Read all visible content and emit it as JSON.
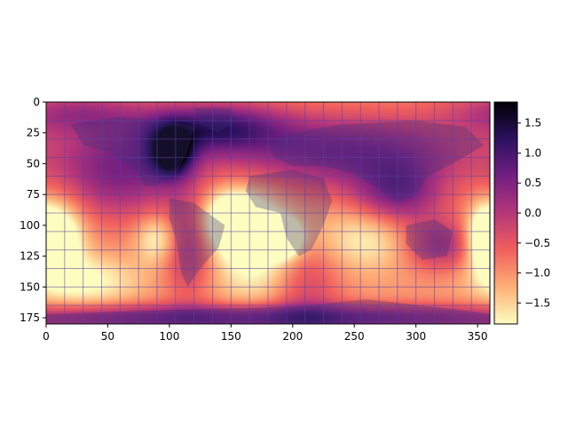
{
  "chart_data": {
    "type": "heatmap",
    "title": "",
    "xlabel": "",
    "ylabel": "",
    "x_range": [
      0,
      360
    ],
    "y_range": [
      0,
      180
    ],
    "y_inverted": true,
    "x_ticks": [
      "0",
      "50",
      "100",
      "150",
      "200",
      "250",
      "300",
      "350"
    ],
    "y_ticks": [
      "0",
      "25",
      "50",
      "75",
      "100",
      "125",
      "150",
      "175"
    ],
    "grid": true,
    "grid_spacing_x": 15,
    "grid_spacing_y": 15,
    "grid_color": "#5b3fa8",
    "colormap": "magma_r",
    "colorbar": {
      "vmin": -1.85,
      "vmax": 1.85,
      "ticks": [
        "1.5",
        "1.0",
        "0.5",
        "0.0",
        "−0.5",
        "−1.0",
        "−1.5"
      ],
      "tick_values": [
        1.5,
        1.0,
        0.5,
        0.0,
        -0.5,
        -1.0,
        -1.5
      ],
      "colors": [
        "#fcfdbf",
        "#feb078",
        "#f1605d",
        "#b5367a",
        "#721f81",
        "#2c115f",
        "#000004"
      ]
    },
    "blobs": [
      {
        "x": 101,
        "y": 40,
        "sx": 12,
        "sy": 14,
        "v": 2.6
      },
      {
        "x": 60,
        "y": 55,
        "sx": 35,
        "sy": 28,
        "v": 1.5
      },
      {
        "x": 135,
        "y": 20,
        "sx": 40,
        "sy": 14,
        "v": 1.8
      },
      {
        "x": 240,
        "y": 40,
        "sx": 80,
        "sy": 22,
        "v": 1.6
      },
      {
        "x": 285,
        "y": 75,
        "sx": 25,
        "sy": 18,
        "v": 1.4
      },
      {
        "x": 115,
        "y": 115,
        "sx": 15,
        "sy": 30,
        "v": 1.1
      },
      {
        "x": 318,
        "y": 115,
        "sx": 22,
        "sy": 15,
        "v": 1.2
      },
      {
        "x": 180,
        "y": 175,
        "sx": 200,
        "sy": 8,
        "v": 1.8
      },
      {
        "x": 20,
        "y": 8,
        "sx": 40,
        "sy": 12,
        "v": 1.0
      },
      {
        "x": 210,
        "y": 145,
        "sx": 20,
        "sy": 30,
        "v": 0.8
      },
      {
        "x": 10,
        "y": 110,
        "sx": 14,
        "sy": 20,
        "v": -1.6
      },
      {
        "x": 150,
        "y": 95,
        "sx": 18,
        "sy": 16,
        "v": -1.7
      },
      {
        "x": 192,
        "y": 110,
        "sx": 10,
        "sy": 10,
        "v": -2.0
      },
      {
        "x": 355,
        "y": 110,
        "sx": 10,
        "sy": 18,
        "v": -1.6
      },
      {
        "x": 90,
        "y": 110,
        "sx": 12,
        "sy": 14,
        "v": -1.0
      },
      {
        "x": 30,
        "y": 145,
        "sx": 30,
        "sy": 14,
        "v": -0.9
      },
      {
        "x": 260,
        "y": 110,
        "sx": 30,
        "sy": 18,
        "v": -0.8
      },
      {
        "x": 170,
        "y": 115,
        "sx": 25,
        "sy": 30,
        "v": -1.2
      }
    ],
    "continents": [
      {
        "name": "North America",
        "points": [
          [
            20,
            18
          ],
          [
            60,
            12
          ],
          [
            95,
            15
          ],
          [
            120,
            20
          ],
          [
            115,
            40
          ],
          [
            107,
            55
          ],
          [
            100,
            62
          ],
          [
            90,
            68
          ],
          [
            80,
            68
          ],
          [
            72,
            55
          ],
          [
            50,
            40
          ],
          [
            30,
            35
          ]
        ]
      },
      {
        "name": "Greenland",
        "points": [
          [
            120,
            5
          ],
          [
            150,
            5
          ],
          [
            155,
            15
          ],
          [
            140,
            25
          ],
          [
            125,
            18
          ]
        ]
      },
      {
        "name": "South America",
        "points": [
          [
            100,
            78
          ],
          [
            120,
            82
          ],
          [
            145,
            100
          ],
          [
            140,
            118
          ],
          [
            125,
            135
          ],
          [
            115,
            150
          ],
          [
            110,
            140
          ],
          [
            105,
            110
          ],
          [
            100,
            95
          ]
        ]
      },
      {
        "name": "Eurasia",
        "points": [
          [
            180,
            32
          ],
          [
            200,
            25
          ],
          [
            240,
            18
          ],
          [
            300,
            15
          ],
          [
            340,
            20
          ],
          [
            355,
            35
          ],
          [
            330,
            50
          ],
          [
            310,
            60
          ],
          [
            300,
            75
          ],
          [
            285,
            82
          ],
          [
            270,
            70
          ],
          [
            250,
            58
          ],
          [
            225,
            52
          ],
          [
            200,
            52
          ],
          [
            185,
            45
          ]
        ]
      },
      {
        "name": "Africa",
        "points": [
          [
            165,
            60
          ],
          [
            200,
            55
          ],
          [
            225,
            62
          ],
          [
            232,
            80
          ],
          [
            225,
            100
          ],
          [
            215,
            120
          ],
          [
            205,
            125
          ],
          [
            195,
            110
          ],
          [
            190,
            90
          ],
          [
            170,
            85
          ],
          [
            162,
            72
          ]
        ]
      },
      {
        "name": "Australia",
        "points": [
          [
            292,
            100
          ],
          [
            315,
            95
          ],
          [
            330,
            105
          ],
          [
            325,
            125
          ],
          [
            305,
            128
          ],
          [
            292,
            115
          ]
        ]
      },
      {
        "name": "Antarctica",
        "points": [
          [
            0,
            172
          ],
          [
            60,
            170
          ],
          [
            120,
            168
          ],
          [
            200,
            166
          ],
          [
            260,
            160
          ],
          [
            330,
            168
          ],
          [
            360,
            172
          ],
          [
            360,
            180
          ],
          [
            0,
            180
          ]
        ]
      }
    ]
  }
}
